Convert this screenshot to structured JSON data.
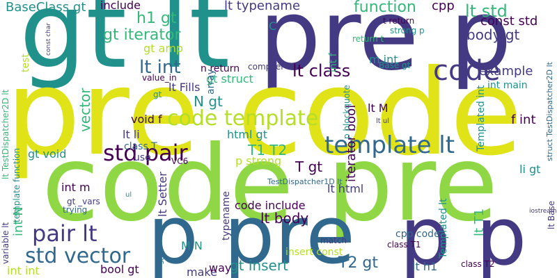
{
  "palette": {
    "yellow": "#dfe318",
    "lime": "#8fd744",
    "green": "#35b779",
    "teal": "#21918c",
    "blue": "#31688e",
    "indigo": "#443983",
    "purple": "#440154",
    "light": "#b5de2b"
  },
  "words": [
    {
      "text": "gt lt",
      "color": "teal"
    },
    {
      "text": "pre p",
      "color": "indigo"
    },
    {
      "text": "pre code",
      "color": "yellow"
    },
    {
      "text": "code pre",
      "color": "lime"
    },
    {
      "text": "p pre",
      "color": "blue"
    },
    {
      "text": "p p",
      "color": "indigo"
    },
    {
      "text": "code",
      "color": "indigo"
    },
    {
      "text": "template lt",
      "color": "blue"
    },
    {
      "text": "code template",
      "color": "light"
    },
    {
      "text": "std pair",
      "color": "purple"
    },
    {
      "text": "std vector",
      "color": "blue"
    },
    {
      "text": "pair lt",
      "color": "indigo"
    },
    {
      "text": "lt std",
      "color": "green"
    },
    {
      "text": "lt int",
      "color": "blue"
    },
    {
      "text": "lt class",
      "color": "purple"
    },
    {
      "text": "gt iterator",
      "color": "green"
    },
    {
      "text": "function",
      "color": "green"
    },
    {
      "text": "body gt",
      "color": "indigo"
    },
    {
      "text": "BaseClass gt",
      "color": "teal"
    },
    {
      "text": "include",
      "color": "purple"
    },
    {
      "text": "lt typename",
      "color": "indigo"
    },
    {
      "text": "const std",
      "color": "purple"
    },
    {
      "text": "cpp",
      "color": "purple"
    },
    {
      "text": "example",
      "color": "indigo"
    },
    {
      "text": "m int",
      "color": "teal"
    },
    {
      "text": "lt Fills",
      "color": "indigo"
    },
    {
      "text": "gt struct",
      "color": "green"
    },
    {
      "text": "h1 gt",
      "color": "green"
    },
    {
      "text": "gt amp",
      "color": "light"
    },
    {
      "text": "lt M",
      "color": "purple"
    },
    {
      "text": "T1 T2",
      "color": "green"
    },
    {
      "text": "T gt",
      "color": "purple"
    },
    {
      "text": "p strong",
      "color": "light"
    },
    {
      "text": "html gt",
      "color": "teal"
    },
    {
      "text": "lt html",
      "color": "indigo"
    },
    {
      "text": "lt body",
      "color": "purple"
    },
    {
      "text": "code include",
      "color": "purple"
    },
    {
      "text": "insert const",
      "color": "light"
    },
    {
      "text": "T2 gt",
      "color": "blue"
    },
    {
      "text": "gt insert",
      "color": "teal"
    },
    {
      "text": "make",
      "color": "indigo"
    },
    {
      "text": "way",
      "color": "purple"
    },
    {
      "text": "lt h1",
      "color": "blue"
    },
    {
      "text": "bool gt",
      "color": "purple"
    },
    {
      "text": "int int",
      "color": "light"
    },
    {
      "text": "M N",
      "color": "teal"
    },
    {
      "text": "f int",
      "color": "purple"
    },
    {
      "text": "li gt",
      "color": "teal"
    },
    {
      "text": "void f",
      "color": "purple"
    },
    {
      "text": "int m",
      "color": "purple"
    },
    {
      "text": "gt void",
      "color": "teal"
    },
    {
      "text": "lt li",
      "color": "indigo"
    },
    {
      "text": "class T",
      "color": "blue"
    },
    {
      "text": "N gt",
      "color": "teal"
    },
    {
      "text": "n return",
      "color": "purple"
    },
    {
      "text": "int main",
      "color": "teal"
    },
    {
      "text": "C",
      "color": "teal"
    },
    {
      "text": "vector",
      "color": "green"
    },
    {
      "text": "use",
      "color": "indigo"
    },
    {
      "text": "cpp code",
      "color": "blue"
    },
    {
      "text": "match",
      "color": "indigo"
    },
    {
      "text": "class T1",
      "color": "purple"
    },
    {
      "text": "class T2",
      "color": "purple"
    },
    {
      "text": "Base gt",
      "color": "teal"
    },
    {
      "text": "compiler",
      "color": "indigo"
    },
    {
      "text": "return t",
      "color": "green"
    },
    {
      "text": "t return",
      "color": "purple"
    },
    {
      "text": "strong p",
      "color": "teal"
    },
    {
      "text": "lt Setter",
      "color": "indigo"
    },
    {
      "text": "int N",
      "color": "green"
    },
    {
      "text": "test",
      "color": "light"
    },
    {
      "text": "variable lt",
      "color": "indigo"
    },
    {
      "text": "lt TestDispatcher2D lt",
      "color": "green"
    },
    {
      "text": "template function",
      "color": "teal"
    },
    {
      "text": "iterator bool",
      "color": "purple"
    },
    {
      "text": "Templated int",
      "color": "teal"
    },
    {
      "text": "struct TestDispatcher2D lt",
      "color": "blue"
    },
    {
      "text": "Templated lt",
      "color": "teal"
    },
    {
      "text": "lt T1",
      "color": "green"
    },
    {
      "text": "p blockquote",
      "color": "teal"
    },
    {
      "text": "int f",
      "color": "green"
    },
    {
      "text": "array",
      "color": "blue"
    },
    {
      "text": "typename",
      "color": "indigo"
    },
    {
      "text": "gt _vars",
      "color": "indigo"
    },
    {
      "text": "trying",
      "color": "blue"
    },
    {
      "text": "TestDispatcher1D lt",
      "color": "blue"
    },
    {
      "text": "value_in",
      "color": "purple"
    },
    {
      "text": "ul",
      "color": "teal"
    },
    {
      "text": "gt",
      "color": "teal"
    },
    {
      "text": "VC6",
      "color": "purple"
    },
    {
      "text": "lt ul",
      "color": "indigo"
    },
    {
      "text": "const char",
      "color": "indigo"
    },
    {
      "text": "iostream gt",
      "color": "indigo"
    },
    {
      "text": "lt Base",
      "color": "indigo"
    },
    {
      "text": "std",
      "color": "blue"
    }
  ]
}
